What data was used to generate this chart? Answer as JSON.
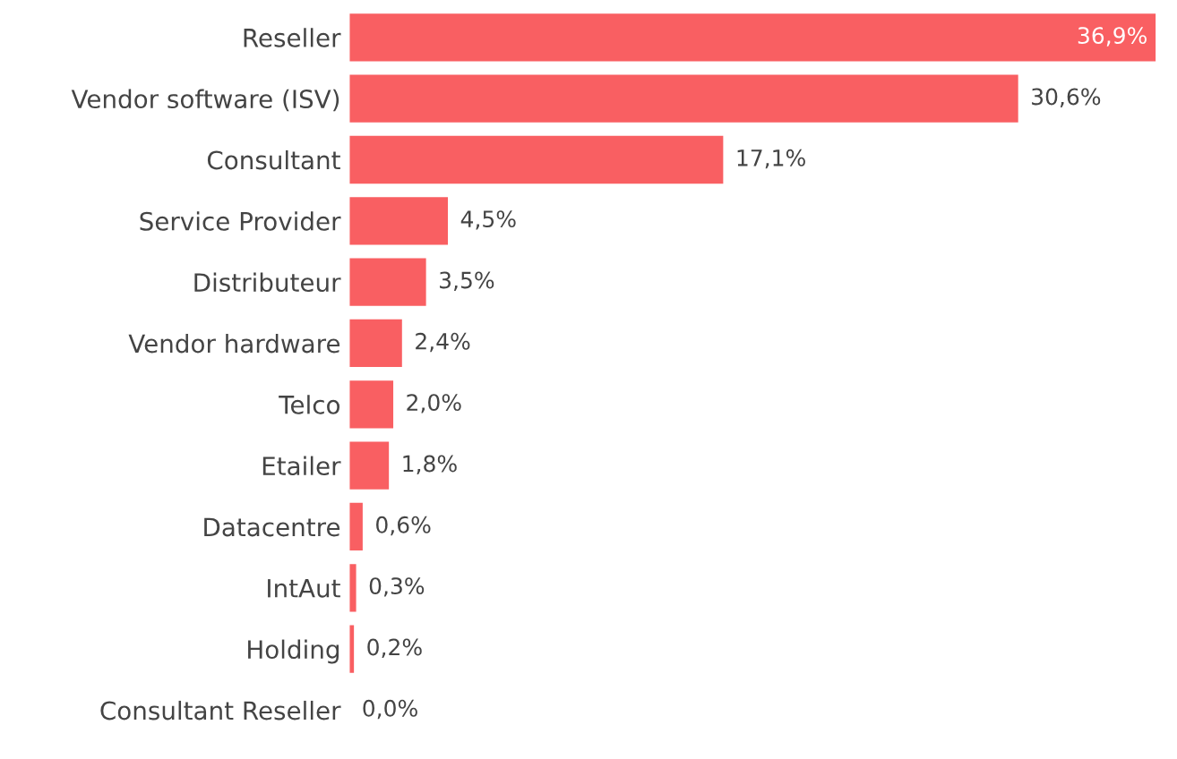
{
  "chart_data": {
    "type": "bar",
    "orientation": "horizontal",
    "categories": [
      "Reseller",
      "Vendor software (ISV)",
      "Consultant",
      "Service Provider",
      "Distributeur",
      "Vendor hardware",
      "Telco",
      "Etailer",
      "Datacentre",
      "IntAut",
      "Holding",
      "Consultant Reseller"
    ],
    "values": [
      36.9,
      30.6,
      17.1,
      4.5,
      3.5,
      2.4,
      2.0,
      1.8,
      0.6,
      0.3,
      0.2,
      0.0
    ],
    "value_labels": [
      "36,9%",
      "30,6%",
      "17,1%",
      "4,5%",
      "3,5%",
      "2,4%",
      "2,0%",
      "1,8%",
      "0,6%",
      "0,3%",
      "0,2%",
      "0,0%"
    ],
    "color": "#f95f62",
    "xlim": [
      0,
      36.9
    ],
    "tick_labels": "y",
    "grid": false,
    "legend": false
  }
}
